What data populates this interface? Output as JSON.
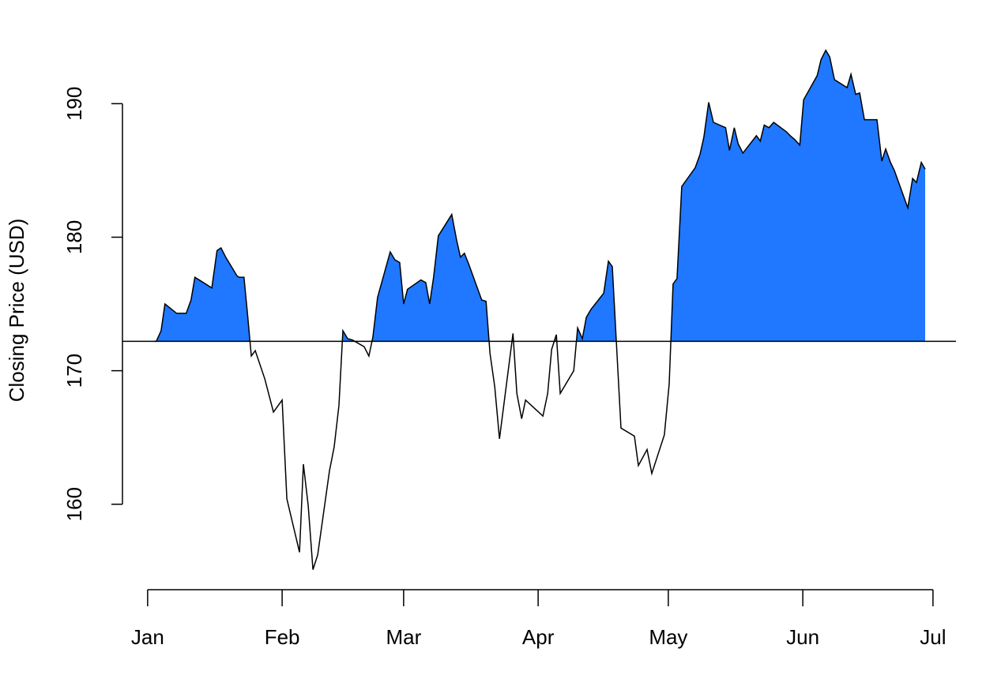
{
  "chart_data": {
    "type": "area",
    "y_label": "Closing Price (USD)",
    "x": [
      1.5,
      2.0,
      3.1,
      4.0,
      6.7,
      8.9,
      10.0,
      10.9,
      14.8,
      16.0,
      16.9,
      18.0,
      20.6,
      21.1,
      22.2,
      23.0,
      23.9,
      24.8,
      27.0,
      29.0,
      31.0,
      32.1,
      35.0,
      35.9,
      37.0,
      38.1,
      39.2,
      41.9,
      43.0,
      44.1,
      45.0,
      46.1,
      47.2,
      49.9,
      51.0,
      51.9,
      53.0,
      55.9,
      57.0,
      58.1,
      59.0,
      59.9,
      63.0,
      64.1,
      65.0,
      65.9,
      67.0,
      70.1,
      71.2,
      72.1,
      73.0,
      74.1,
      77.0,
      78.0,
      78.9,
      80.0,
      81.1,
      84.2,
      85.1,
      86.2,
      87.1,
      91.1,
      92.2,
      93.1,
      94.2,
      95.1,
      98.2,
      99.1,
      100.2,
      101.1,
      102.2,
      105.1,
      106.2,
      107.1,
      109.1,
      112.2,
      113.1,
      115.1,
      116.2,
      119.1,
      120.2,
      121.1,
      122.0,
      123.1,
      126.2,
      127.3,
      128.2,
      129.3,
      130.4,
      133.2,
      134.1,
      135.2,
      136.1,
      137.2,
      140.3,
      141.2,
      142.1,
      143.2,
      144.3,
      147.2,
      148.1,
      149.2,
      150.3,
      151.2,
      154.3,
      155.2,
      156.3,
      157.2,
      158.3,
      161.2,
      162.1,
      163.2,
      164.1,
      165.2,
      168.1,
      169.2,
      170.1,
      171.2,
      172.1,
      175.2,
      176.3,
      177.2,
      178.3,
      179.2
    ],
    "values": [
      172.2,
      172.2,
      173.0,
      175.0,
      174.3,
      174.3,
      175.3,
      177.0,
      176.2,
      179.0,
      179.2,
      178.5,
      177.1,
      177.0,
      177.0,
      174.3,
      171.1,
      171.5,
      169.4,
      166.9,
      167.8,
      160.4,
      156.4,
      163.0,
      159.9,
      155.1,
      156.2,
      162.5,
      164.3,
      167.4,
      173.0,
      172.4,
      172.3,
      171.8,
      171.1,
      172.5,
      175.5,
      178.9,
      178.3,
      178.1,
      175.0,
      176.1,
      176.8,
      176.6,
      175.0,
      177.0,
      180.1,
      181.7,
      179.8,
      178.5,
      178.8,
      177.9,
      175.3,
      175.2,
      171.3,
      168.8,
      164.9,
      172.8,
      168.3,
      166.4,
      167.8,
      166.6,
      168.3,
      171.6,
      172.7,
      168.3,
      170.0,
      173.2,
      172.4,
      174.0,
      174.6,
      175.8,
      178.2,
      177.8,
      165.7,
      165.1,
      162.9,
      164.1,
      162.3,
      165.2,
      169.0,
      176.5,
      176.9,
      183.8,
      185.2,
      186.2,
      187.5,
      190.1,
      188.6,
      188.2,
      186.5,
      188.2,
      187.0,
      186.3,
      187.6,
      187.2,
      188.4,
      188.2,
      188.6,
      187.9,
      187.6,
      187.3,
      186.9,
      190.3,
      192.1,
      193.3,
      194.0,
      193.5,
      191.8,
      191.2,
      192.2,
      190.7,
      190.8,
      188.8,
      188.8,
      185.7,
      186.6,
      185.6,
      185.0,
      182.2,
      184.4,
      184.1,
      185.6,
      185.1
    ],
    "baseline": 172.2,
    "color": "#1f78ff",
    "xlim": [
      -5.8,
      186.3
    ],
    "xticks": [
      {
        "value": 0,
        "label": "Jan"
      },
      {
        "value": 31,
        "label": "Feb"
      },
      {
        "value": 59,
        "label": "Mar"
      },
      {
        "value": 90,
        "label": "Apr"
      },
      {
        "value": 120,
        "label": "May"
      },
      {
        "value": 151,
        "label": "Jun"
      },
      {
        "value": 181,
        "label": "Jul"
      }
    ],
    "ylim": [
      153.6,
      195.4
    ],
    "yticks": [
      160,
      170,
      180,
      190
    ]
  }
}
